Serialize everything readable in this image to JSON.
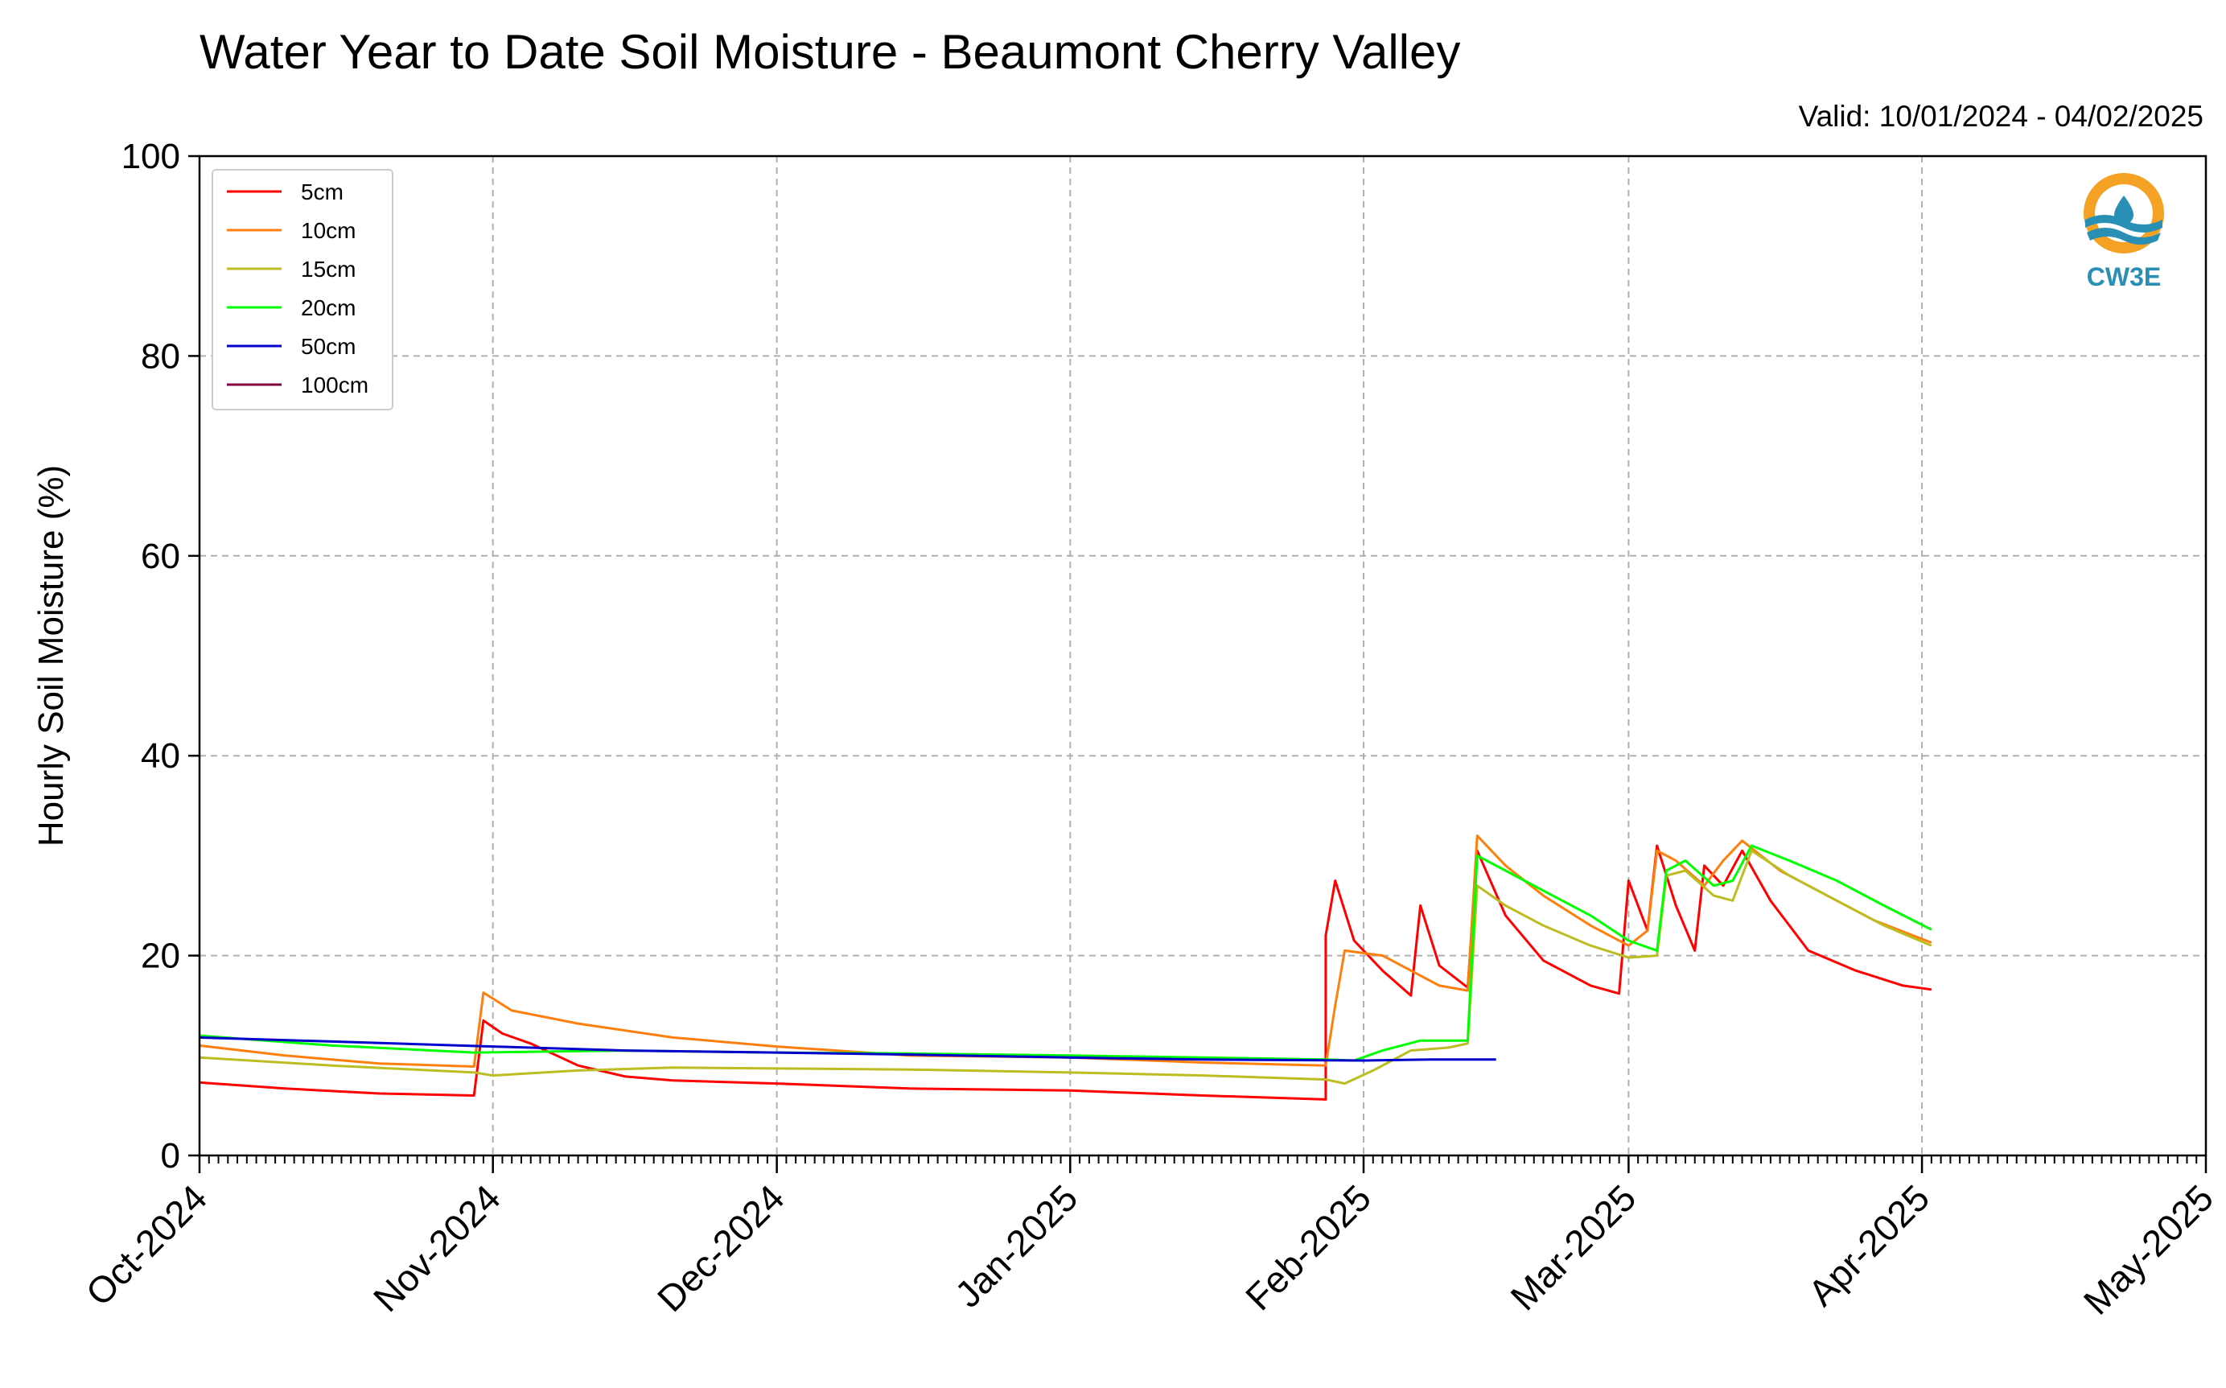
{
  "title": "Water Year to Date Soil Moisture - Beaumont Cherry Valley",
  "valid_text": "Valid: 10/01/2024 - 04/02/2025",
  "logo": {
    "text": "CW3E",
    "color": "#2a8fb5",
    "accent": "#f5a123",
    "icon": "water-drop-logo-icon"
  },
  "chart_data": {
    "type": "line",
    "title": "Water Year to Date Soil Moisture - Beaumont Cherry Valley",
    "ylabel": "Hourly Soil Moisture (%)",
    "xlabel": "",
    "ylim": [
      0,
      100
    ],
    "xlim": [
      "2024-10-01",
      "2025-05-01"
    ],
    "yticks": [
      0,
      20,
      40,
      60,
      80,
      100
    ],
    "xticks": [
      {
        "date": "2024-10-01",
        "label": "Oct-2024"
      },
      {
        "date": "2024-11-01",
        "label": "Nov-2024"
      },
      {
        "date": "2024-12-01",
        "label": "Dec-2024"
      },
      {
        "date": "2025-01-01",
        "label": "Jan-2025"
      },
      {
        "date": "2025-02-01",
        "label": "Feb-2025"
      },
      {
        "date": "2025-03-01",
        "label": "Mar-2025"
      },
      {
        "date": "2025-04-01",
        "label": "Apr-2025"
      },
      {
        "date": "2025-05-01",
        "label": "May-2025"
      }
    ],
    "grid": true,
    "legend_position": "top-left",
    "series": [
      {
        "name": "5cm",
        "color": "#ff0000",
        "points": [
          [
            "2024-10-01",
            7.3
          ],
          [
            "2024-10-10",
            6.7
          ],
          [
            "2024-10-20",
            6.2
          ],
          [
            "2024-10-30",
            6.0
          ],
          [
            "2024-10-31",
            13.5
          ],
          [
            "2024-11-02",
            12.2
          ],
          [
            "2024-11-05",
            11.2
          ],
          [
            "2024-11-10",
            9.0
          ],
          [
            "2024-11-15",
            7.9
          ],
          [
            "2024-11-20",
            7.5
          ],
          [
            "2024-12-01",
            7.2
          ],
          [
            "2024-12-15",
            6.7
          ],
          [
            "2025-01-01",
            6.5
          ],
          [
            "2025-01-15",
            6.0
          ],
          [
            "2025-01-28",
            5.6
          ],
          [
            "2025-01-28",
            22.0
          ],
          [
            "2025-01-29",
            27.5
          ],
          [
            "2025-01-31",
            21.5
          ],
          [
            "2025-02-03",
            18.5
          ],
          [
            "2025-02-06",
            16.0
          ],
          [
            "2025-02-07",
            25.0
          ],
          [
            "2025-02-09",
            19.0
          ],
          [
            "2025-02-12",
            16.8
          ],
          [
            "2025-02-13",
            30.5
          ],
          [
            "2025-02-16",
            24.0
          ],
          [
            "2025-02-20",
            19.5
          ],
          [
            "2025-02-25",
            17.0
          ],
          [
            "2025-02-28",
            16.2
          ],
          [
            "2025-03-01",
            27.5
          ],
          [
            "2025-03-03",
            22.5
          ],
          [
            "2025-03-04",
            31.0
          ],
          [
            "2025-03-06",
            25.0
          ],
          [
            "2025-03-08",
            20.5
          ],
          [
            "2025-03-09",
            29.0
          ],
          [
            "2025-03-11",
            27.0
          ],
          [
            "2025-03-13",
            30.5
          ],
          [
            "2025-03-16",
            25.5
          ],
          [
            "2025-03-20",
            20.5
          ],
          [
            "2025-03-25",
            18.5
          ],
          [
            "2025-03-30",
            17.0
          ],
          [
            "2025-04-02",
            16.6
          ]
        ]
      },
      {
        "name": "10cm",
        "color": "#ff7f0e",
        "points": [
          [
            "2024-10-01",
            11.0
          ],
          [
            "2024-10-10",
            10.0
          ],
          [
            "2024-10-20",
            9.2
          ],
          [
            "2024-10-30",
            8.9
          ],
          [
            "2024-10-31",
            16.3
          ],
          [
            "2024-11-03",
            14.5
          ],
          [
            "2024-11-10",
            13.2
          ],
          [
            "2024-11-20",
            11.8
          ],
          [
            "2024-12-01",
            10.9
          ],
          [
            "2024-12-15",
            10.0
          ],
          [
            "2025-01-01",
            9.8
          ],
          [
            "2025-01-15",
            9.3
          ],
          [
            "2025-01-28",
            9.0
          ],
          [
            "2025-01-29",
            15.0
          ],
          [
            "2025-01-30",
            20.5
          ],
          [
            "2025-02-03",
            20.0
          ],
          [
            "2025-02-06",
            18.5
          ],
          [
            "2025-02-09",
            17.0
          ],
          [
            "2025-02-12",
            16.5
          ],
          [
            "2025-02-13",
            32.0
          ],
          [
            "2025-02-16",
            29.0
          ],
          [
            "2025-02-20",
            26.0
          ],
          [
            "2025-02-25",
            23.0
          ],
          [
            "2025-03-01",
            21.0
          ],
          [
            "2025-03-03",
            22.5
          ],
          [
            "2025-03-04",
            30.5
          ],
          [
            "2025-03-06",
            29.5
          ],
          [
            "2025-03-09",
            27.0
          ],
          [
            "2025-03-11",
            29.5
          ],
          [
            "2025-03-13",
            31.5
          ],
          [
            "2025-03-17",
            28.5
          ],
          [
            "2025-03-22",
            26.0
          ],
          [
            "2025-03-27",
            23.5
          ],
          [
            "2025-04-02",
            21.3
          ]
        ]
      },
      {
        "name": "15cm",
        "color": "#bcbd22",
        "points": [
          [
            "2024-10-01",
            9.8
          ],
          [
            "2024-10-15",
            9.0
          ],
          [
            "2024-10-30",
            8.3
          ],
          [
            "2024-11-01",
            8.0
          ],
          [
            "2024-11-10",
            8.5
          ],
          [
            "2024-11-20",
            8.8
          ],
          [
            "2024-12-01",
            8.7
          ],
          [
            "2024-12-15",
            8.6
          ],
          [
            "2025-01-01",
            8.3
          ],
          [
            "2025-01-15",
            8.0
          ],
          [
            "2025-01-28",
            7.6
          ],
          [
            "2025-01-30",
            7.2
          ],
          [
            "2025-02-02",
            8.5
          ],
          [
            "2025-02-04",
            9.5
          ],
          [
            "2025-02-06",
            10.5
          ],
          [
            "2025-02-10",
            10.8
          ],
          [
            "2025-02-12",
            11.2
          ],
          [
            "2025-02-13",
            27.0
          ],
          [
            "2025-02-16",
            25.0
          ],
          [
            "2025-02-20",
            23.0
          ],
          [
            "2025-02-25",
            21.0
          ],
          [
            "2025-03-01",
            19.8
          ],
          [
            "2025-03-04",
            20.0
          ],
          [
            "2025-03-05",
            28.0
          ],
          [
            "2025-03-07",
            28.5
          ],
          [
            "2025-03-10",
            26.0
          ],
          [
            "2025-03-12",
            25.5
          ],
          [
            "2025-03-14",
            30.5
          ],
          [
            "2025-03-18",
            28.0
          ],
          [
            "2025-03-23",
            25.5
          ],
          [
            "2025-03-28",
            23.0
          ],
          [
            "2025-04-02",
            21.0
          ]
        ]
      },
      {
        "name": "20cm",
        "color": "#00ff00",
        "points": [
          [
            "2024-10-01",
            12.0
          ],
          [
            "2024-10-15",
            11.0
          ],
          [
            "2024-10-30",
            10.3
          ],
          [
            "2024-11-15",
            10.5
          ],
          [
            "2024-12-01",
            10.3
          ],
          [
            "2024-12-15",
            10.2
          ],
          [
            "2025-01-01",
            10.0
          ],
          [
            "2025-01-15",
            9.8
          ],
          [
            "2025-01-28",
            9.6
          ],
          [
            "2025-01-31",
            9.5
          ],
          [
            "2025-02-03",
            10.5
          ],
          [
            "2025-02-05",
            11.0
          ],
          [
            "2025-02-07",
            11.5
          ],
          [
            "2025-02-12",
            11.5
          ],
          [
            "2025-02-13",
            30.0
          ],
          [
            "2025-02-16",
            28.5
          ],
          [
            "2025-02-20",
            26.5
          ],
          [
            "2025-02-25",
            24.0
          ],
          [
            "2025-03-01",
            21.5
          ],
          [
            "2025-03-04",
            20.5
          ],
          [
            "2025-03-05",
            28.5
          ],
          [
            "2025-03-07",
            29.5
          ],
          [
            "2025-03-10",
            27.0
          ],
          [
            "2025-03-12",
            27.5
          ],
          [
            "2025-03-14",
            31.0
          ],
          [
            "2025-03-18",
            29.5
          ],
          [
            "2025-03-23",
            27.5
          ],
          [
            "2025-03-28",
            25.0
          ],
          [
            "2025-04-02",
            22.6
          ]
        ]
      },
      {
        "name": "50cm",
        "color": "#0000cd",
        "points": [
          [
            "2024-10-01",
            11.8
          ],
          [
            "2024-10-15",
            11.4
          ],
          [
            "2024-11-01",
            10.9
          ],
          [
            "2024-11-15",
            10.5
          ],
          [
            "2024-12-01",
            10.3
          ],
          [
            "2024-12-15",
            10.1
          ],
          [
            "2025-01-01",
            9.8
          ],
          [
            "2025-01-15",
            9.6
          ],
          [
            "2025-02-01",
            9.5
          ],
          [
            "2025-02-08",
            9.6
          ],
          [
            "2025-02-15",
            9.6
          ]
        ]
      },
      {
        "name": "100cm",
        "color": "#800040",
        "points": []
      }
    ]
  }
}
